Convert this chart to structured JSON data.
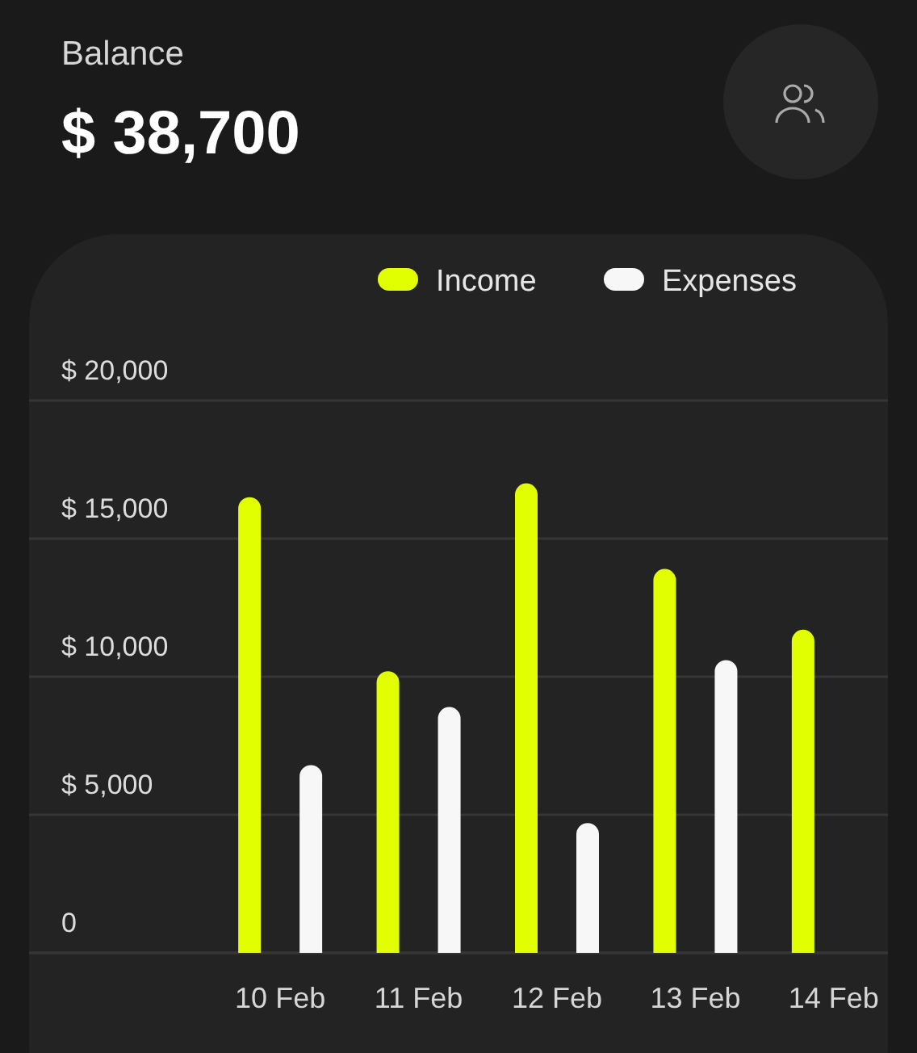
{
  "chart_data": {
    "type": "bar",
    "title": "Balance",
    "subtitle": "$ 38,700",
    "categories": [
      "10 Feb",
      "11 Feb",
      "12 Feb",
      "13 Feb",
      "14 Feb"
    ],
    "series": [
      {
        "name": "Income",
        "color": "#e1ff00",
        "values": [
          16500,
          10200,
          17000,
          13900,
          11700
        ]
      },
      {
        "name": "Expenses",
        "color": "#f7f7f7",
        "values": [
          6800,
          8900,
          4700,
          10600,
          null
        ]
      }
    ],
    "ylim": [
      0,
      20000
    ],
    "yticks": [
      {
        "value": 0,
        "label": "0"
      },
      {
        "value": 5000,
        "label": "$ 5,000"
      },
      {
        "value": 10000,
        "label": "$ 10,000"
      },
      {
        "value": 15000,
        "label": "$ 15,000"
      },
      {
        "value": 20000,
        "label": "$ 20,000"
      }
    ],
    "grid": "y",
    "legend": "top right"
  }
}
